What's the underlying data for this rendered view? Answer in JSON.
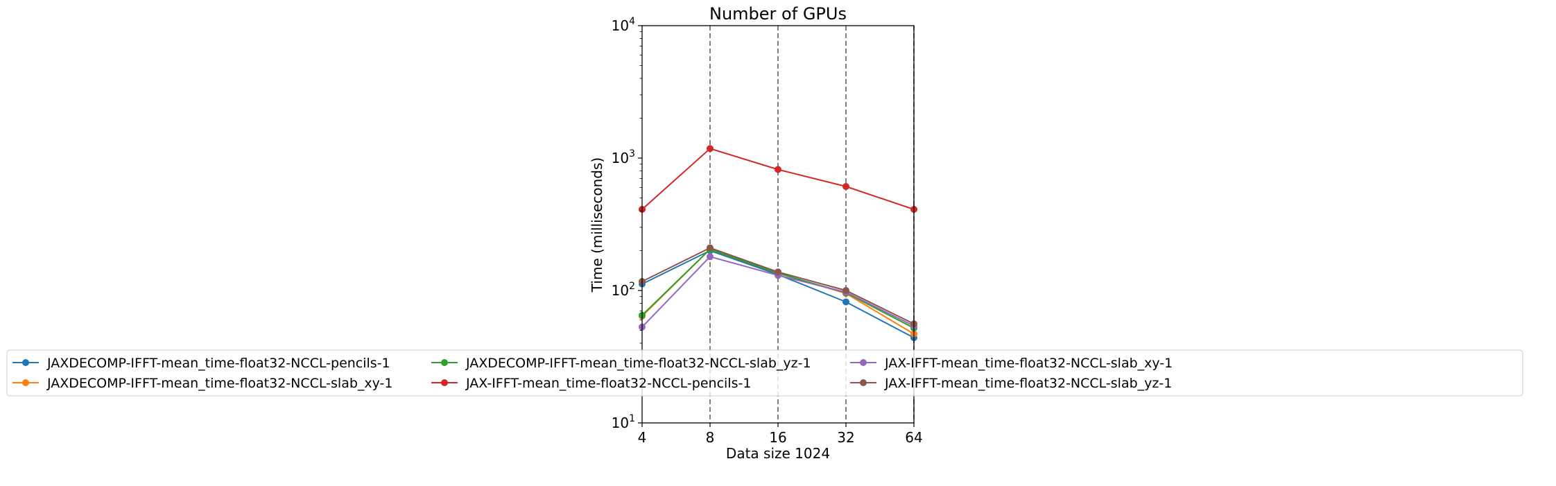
{
  "chart_data": {
    "type": "line",
    "title": "Number of GPUs",
    "xlabel": "Data size 1024",
    "ylabel": "Time (milliseconds)",
    "yscale": "log",
    "ylim": [
      10,
      10000
    ],
    "x": [
      4,
      8,
      16,
      32,
      64
    ],
    "x_tick_labels": [
      "4",
      "8",
      "16",
      "32",
      "64"
    ],
    "y_tick_labels": [
      {
        "base": "10",
        "exp": "1"
      },
      {
        "base": "10",
        "exp": "2"
      },
      {
        "base": "10",
        "exp": "3"
      },
      {
        "base": "10",
        "exp": "4"
      }
    ],
    "vertical_reference_lines_at": [
      8,
      16,
      32,
      64
    ],
    "legend_placement": "below-center, 4 columns",
    "series": [
      {
        "name": "JAXDECOMP-IFFT-mean_time-float32-NCCL-pencils-1",
        "color": "#1f77b4",
        "values": [
          112,
          200,
          132,
          82,
          44
        ]
      },
      {
        "name": "JAXDECOMP-IFFT-mean_time-float32-NCCL-slab_xy-1",
        "color": "#ff7f0e",
        "values": [
          64,
          205,
          135,
          95,
          47
        ]
      },
      {
        "name": "JAXDECOMP-IFFT-mean_time-float32-NCCL-slab_yz-1",
        "color": "#2ca02c",
        "values": [
          65,
          205,
          135,
          96,
          52
        ]
      },
      {
        "name": "JAX-IFFT-mean_time-float32-NCCL-pencils-1",
        "color": "#d62728",
        "values": [
          410,
          1180,
          820,
          610,
          410
        ]
      },
      {
        "name": "JAX-IFFT-mean_time-float32-NCCL-slab_xy-1",
        "color": "#9467bd",
        "values": [
          53,
          180,
          130,
          97,
          54
        ]
      },
      {
        "name": "JAX-IFFT-mean_time-float32-NCCL-slab_yz-1",
        "color": "#8c564b",
        "values": [
          117,
          210,
          138,
          100,
          56
        ]
      }
    ]
  }
}
